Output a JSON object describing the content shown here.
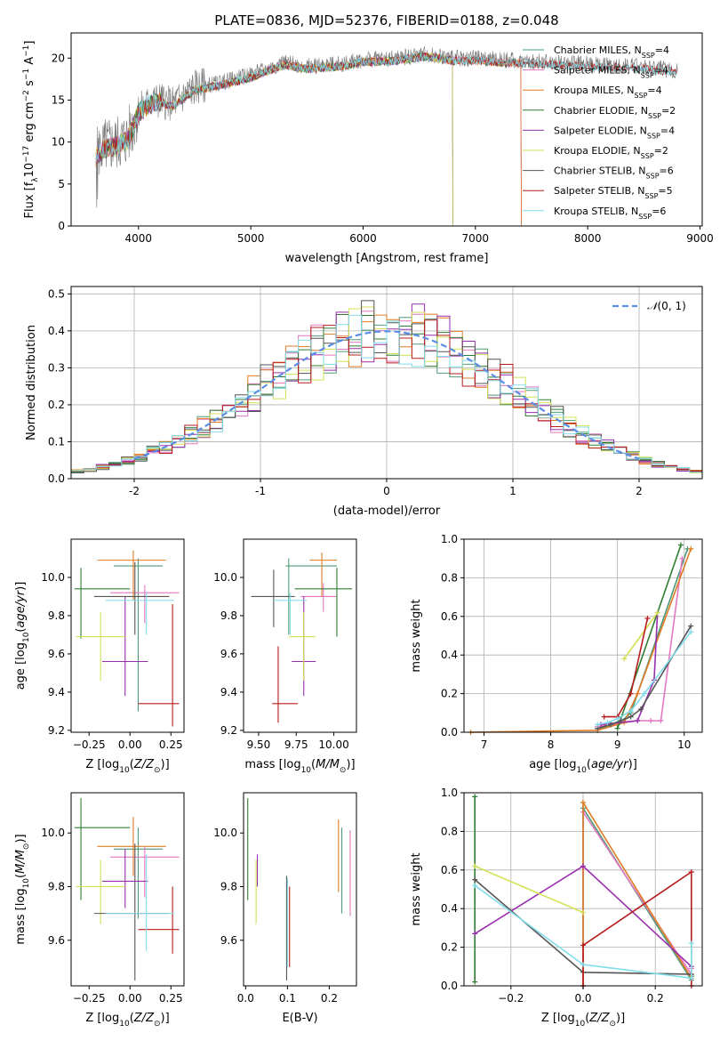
{
  "figure_title": "PLATE=0836, MJD=52376, FIBERID=0188, z=0.048",
  "colors": {
    "Chabrier MILES": "#4e9a78",
    "Salpeter MILES": "#e377c2",
    "Kroupa MILES": "#e07b24",
    "Chabrier ELODIE": "#2e7d32",
    "Salpeter ELODIE": "#9a2fae",
    "Kroupa ELODIE": "#d4e157",
    "Chabrier STELIB": "#555555",
    "Salpeter STELIB": "#b71c1c",
    "Kroupa STELIB": "#80deea",
    "normal_curve": "#5b8ee6",
    "spec_data": "#777777"
  },
  "chart_data": [
    {
      "id": "spectrum",
      "type": "line",
      "xlabel": "wavelength [Angstrom, rest frame]",
      "ylabel_parts": [
        "Flux [f",
        "λ",
        "10",
        "−17",
        " erg cm",
        "−2",
        " s",
        "−1",
        " A",
        "−1",
        "]"
      ],
      "xlim": [
        3400,
        9020
      ],
      "ylim": [
        0,
        23
      ],
      "xticks": [
        4000,
        5000,
        6000,
        7000,
        8000,
        9000
      ],
      "yticks": [
        0,
        5,
        10,
        15,
        20
      ],
      "legend": {
        "placement": "upper right",
        "entries": [
          {
            "name": "Chabrier MILES",
            "nssp": "4"
          },
          {
            "name": "Salpeter MILES",
            "nssp": "4"
          },
          {
            "name": "Kroupa MILES",
            "nssp": "4"
          },
          {
            "name": "Chabrier ELODIE",
            "nssp": "2"
          },
          {
            "name": "Salpeter ELODIE",
            "nssp": "4"
          },
          {
            "name": "Kroupa ELODIE",
            "nssp": "2"
          },
          {
            "name": "Chabrier STELIB",
            "nssp": "6"
          },
          {
            "name": "Salpeter STELIB",
            "nssp": "5"
          },
          {
            "name": "Kroupa STELIB",
            "nssp": "6"
          }
        ],
        "label_prefix": ", N",
        "label_sub": "SSP",
        "label_eq": "="
      },
      "data_profile": {
        "x": [
          3620,
          3700,
          3800,
          3900,
          3950,
          4000,
          4100,
          4200,
          4300,
          4400,
          4500,
          4700,
          5000,
          5300,
          5500,
          5800,
          6000,
          6300,
          6560,
          6800,
          7000,
          7200,
          7500,
          8000,
          8500,
          8800
        ],
        "y": [
          8.5,
          9.5,
          9.8,
          10.5,
          12.0,
          13.8,
          14.8,
          15.0,
          14.5,
          15.5,
          16.5,
          17.0,
          18.0,
          19.5,
          19.0,
          19.3,
          19.8,
          20.0,
          20.5,
          20.0,
          20.0,
          19.8,
          19.6,
          19.3,
          19.0,
          18.5
        ]
      },
      "model_cutoffs": [
        {
          "name": "Kroupa ELODIE",
          "x_end": 6800
        },
        {
          "name": "Chabrier ELODIE",
          "x_end": 6800
        },
        {
          "name": "Salpeter ELODIE",
          "x_end": 6800
        },
        {
          "name": "Kroupa MILES",
          "x_end": 7410
        },
        {
          "name": "Salpeter MILES",
          "x_end": 7410
        },
        {
          "name": "Chabrier MILES",
          "x_end": 7410
        }
      ]
    },
    {
      "id": "residuals",
      "type": "histogram",
      "xlabel": "(data-model)/error",
      "ylabel": "Normed distribution",
      "xlim": [
        -2.5,
        2.5
      ],
      "ylim": [
        0,
        0.52
      ],
      "xticks": [
        -2,
        -1,
        0,
        1,
        2
      ],
      "yticks": [
        0.0,
        0.1,
        0.2,
        0.3,
        0.4,
        0.5
      ],
      "bin_width": 0.1,
      "legend": {
        "label_prefix": "𝒩",
        "label_args": "(0, 1)",
        "placement": "upper right"
      },
      "series": [
        {
          "name": "Chabrier MILES",
          "seed": 11
        },
        {
          "name": "Salpeter MILES",
          "seed": 23
        },
        {
          "name": "Kroupa MILES",
          "seed": 37
        },
        {
          "name": "Chabrier ELODIE",
          "seed": 41
        },
        {
          "name": "Salpeter ELODIE",
          "seed": 53
        },
        {
          "name": "Kroupa ELODIE",
          "seed": 67
        },
        {
          "name": "Chabrier STELIB",
          "seed": 71
        },
        {
          "name": "Salpeter STELIB",
          "seed": 83
        },
        {
          "name": "Kroupa STELIB",
          "seed": 97
        }
      ]
    },
    {
      "id": "age_vs_Z",
      "type": "errorbar",
      "xlabel_parts": [
        "Z [log",
        "10",
        "(",
        "Z/Z",
        "⊙",
        ")]"
      ],
      "ylabel_parts": [
        "age  [log",
        "10",
        "(",
        "age/yr",
        ")]"
      ],
      "xlim": [
        -0.36,
        0.33
      ],
      "ylim": [
        9.19,
        10.2
      ],
      "xticks": [
        -0.25,
        0.0,
        0.25
      ],
      "xticklabels": [
        "−0.25",
        "0.00",
        "0.25"
      ],
      "yticks": [
        9.2,
        9.4,
        9.6,
        9.8,
        10.0
      ],
      "points": [
        {
          "name": "Chabrier MILES",
          "x": 0.05,
          "xlo": -0.1,
          "xhi": 0.2,
          "y": 10.06,
          "ylo": 9.3,
          "yhi": 10.1
        },
        {
          "name": "Salpeter MILES",
          "x": 0.09,
          "xlo": -0.12,
          "xhi": 0.3,
          "y": 9.92,
          "ylo": 9.76,
          "yhi": 9.96
        },
        {
          "name": "Kroupa MILES",
          "x": 0.02,
          "xlo": -0.2,
          "xhi": 0.22,
          "y": 10.09,
          "ylo": 9.88,
          "yhi": 10.14
        },
        {
          "name": "Chabrier ELODIE",
          "x": -0.3,
          "xlo": -0.34,
          "xhi": 0.0,
          "y": 9.94,
          "ylo": 9.68,
          "yhi": 10.05
        },
        {
          "name": "Salpeter ELODIE",
          "x": -0.03,
          "xlo": -0.17,
          "xhi": 0.11,
          "y": 9.56,
          "ylo": 9.38,
          "yhi": 9.9
        },
        {
          "name": "Kroupa ELODIE",
          "x": -0.18,
          "xlo": -0.33,
          "xhi": -0.03,
          "y": 9.69,
          "ylo": 9.46,
          "yhi": 9.82
        },
        {
          "name": "Chabrier STELIB",
          "x": 0.03,
          "xlo": -0.22,
          "xhi": 0.24,
          "y": 9.9,
          "ylo": 9.7,
          "yhi": 10.08
        },
        {
          "name": "Salpeter STELIB",
          "x": 0.26,
          "xlo": 0.05,
          "xhi": 0.3,
          "y": 9.34,
          "ylo": 9.22,
          "yhi": 9.86
        },
        {
          "name": "Kroupa STELIB",
          "x": 0.1,
          "xlo": -0.15,
          "xhi": 0.27,
          "y": 9.88,
          "ylo": 9.7,
          "yhi": 9.92
        }
      ]
    },
    {
      "id": "age_vs_mass",
      "type": "errorbar",
      "xlabel_parts": [
        "mass [log",
        "10",
        "(",
        "M/M",
        "⊙",
        ")]"
      ],
      "xlim": [
        9.4,
        10.15
      ],
      "ylim": [
        9.19,
        10.2
      ],
      "xticks": [
        9.5,
        9.75,
        10.0
      ],
      "xticklabels": [
        "9.50",
        "9.75",
        "10.00"
      ],
      "yticks": [
        9.2,
        9.4,
        9.6,
        9.8,
        10.0
      ],
      "points": [
        {
          "name": "Chabrier MILES",
          "x": 9.7,
          "xlo": 9.68,
          "xhi": 10.02,
          "y": 10.06,
          "ylo": 9.7,
          "yhi": 10.1
        },
        {
          "name": "Salpeter MILES",
          "x": 9.93,
          "xlo": 9.78,
          "xhi": 10.02,
          "y": 9.9,
          "ylo": 9.82,
          "yhi": 9.97
        },
        {
          "name": "Kroupa MILES",
          "x": 9.92,
          "xlo": 9.84,
          "xhi": 10.02,
          "y": 10.09,
          "ylo": 9.9,
          "yhi": 10.13
        },
        {
          "name": "Chabrier ELODIE",
          "x": 10.02,
          "xlo": 9.74,
          "xhi": 10.12,
          "y": 9.94,
          "ylo": 9.69,
          "yhi": 10.05
        },
        {
          "name": "Salpeter ELODIE",
          "x": 9.8,
          "xlo": 9.72,
          "xhi": 9.88,
          "y": 9.56,
          "ylo": 9.38,
          "yhi": 9.9
        },
        {
          "name": "Kroupa ELODIE",
          "x": 9.8,
          "xlo": 9.7,
          "xhi": 9.88,
          "y": 9.69,
          "ylo": 9.46,
          "yhi": 9.82
        },
        {
          "name": "Chabrier STELIB",
          "x": 9.6,
          "xlo": 9.45,
          "xhi": 9.74,
          "y": 9.9,
          "ylo": 9.74,
          "yhi": 10.04
        },
        {
          "name": "Salpeter STELIB",
          "x": 9.63,
          "xlo": 9.59,
          "xhi": 9.76,
          "y": 9.34,
          "ylo": 9.24,
          "yhi": 9.64
        },
        {
          "name": "Kroupa STELIB",
          "x": 9.71,
          "xlo": 9.6,
          "xhi": 9.82,
          "y": 9.88,
          "ylo": 9.7,
          "yhi": 9.92
        }
      ]
    },
    {
      "id": "cum_mass_vs_age",
      "type": "line",
      "xlabel_parts": [
        "age  [log",
        "10",
        "(",
        "age/yr",
        ")]"
      ],
      "ylabel": "mass weight",
      "xlim": [
        6.7,
        10.27
      ],
      "ylim": [
        0,
        1.0
      ],
      "xticks": [
        7,
        8,
        9,
        10
      ],
      "yticks": [
        0.0,
        0.2,
        0.4,
        0.6,
        0.8,
        1.0
      ],
      "series": [
        {
          "name": "Chabrier MILES",
          "x": [
            8.7,
            9.0,
            9.2,
            10.05
          ],
          "y": [
            0.02,
            0.04,
            0.1,
            0.95
          ]
        },
        {
          "name": "Salpeter MILES",
          "x": [
            8.7,
            9.3,
            9.5,
            9.65,
            9.97
          ],
          "y": [
            0.03,
            0.06,
            0.06,
            0.06,
            0.9
          ]
        },
        {
          "name": "Kroupa MILES",
          "x": [
            6.8,
            8.7,
            9.1,
            9.3,
            10.1
          ],
          "y": [
            0.0,
            0.01,
            0.05,
            0.2,
            0.95
          ]
        },
        {
          "name": "Chabrier ELODIE",
          "x": [
            9.0,
            9.95
          ],
          "y": [
            0.02,
            0.97
          ]
        },
        {
          "name": "Salpeter ELODIE",
          "x": [
            8.75,
            9.3,
            9.55,
            9.6
          ],
          "y": [
            0.04,
            0.06,
            0.27,
            0.62
          ]
        },
        {
          "name": "Kroupa ELODIE",
          "x": [
            9.1,
            9.6
          ],
          "y": [
            0.38,
            0.62
          ]
        },
        {
          "name": "Chabrier STELIB",
          "x": [
            8.7,
            8.9,
            9.05,
            9.2,
            9.35,
            10.1
          ],
          "y": [
            0.02,
            0.04,
            0.06,
            0.08,
            0.12,
            0.55
          ]
        },
        {
          "name": "Salpeter STELIB",
          "x": [
            8.8,
            9.0,
            9.2,
            9.45
          ],
          "y": [
            0.08,
            0.08,
            0.2,
            0.59
          ]
        },
        {
          "name": "Kroupa STELIB",
          "x": [
            8.7,
            8.85,
            9.0,
            9.2,
            9.4,
            10.1
          ],
          "y": [
            0.04,
            0.05,
            0.07,
            0.11,
            0.2,
            0.52
          ]
        }
      ]
    },
    {
      "id": "mass_vs_Z",
      "type": "errorbar",
      "xlabel_parts": [
        "Z [log",
        "10",
        "(",
        "Z/Z",
        "⊙",
        ")]"
      ],
      "ylabel_parts": [
        "mass [log",
        "10",
        "(",
        "M/M",
        "⊙",
        ")]"
      ],
      "xlim": [
        -0.36,
        0.33
      ],
      "ylim": [
        9.43,
        10.15
      ],
      "xticks": [
        -0.25,
        0.0,
        0.25
      ],
      "xticklabels": [
        "−0.25",
        "0.00",
        "0.25"
      ],
      "yticks": [
        9.6,
        9.8,
        10.0
      ],
      "points": [
        {
          "name": "Chabrier MILES",
          "x": 0.05,
          "xlo": -0.1,
          "xhi": 0.2,
          "y": 9.94,
          "ylo": 9.68,
          "yhi": 10.02
        },
        {
          "name": "Salpeter MILES",
          "x": 0.09,
          "xlo": -0.12,
          "xhi": 0.3,
          "y": 9.91,
          "ylo": 9.76,
          "yhi": 9.95
        },
        {
          "name": "Kroupa MILES",
          "x": 0.02,
          "xlo": -0.2,
          "xhi": 0.22,
          "y": 9.95,
          "ylo": 9.84,
          "yhi": 10.06
        },
        {
          "name": "Chabrier ELODIE",
          "x": -0.3,
          "xlo": -0.34,
          "xhi": 0.0,
          "y": 10.02,
          "ylo": 9.75,
          "yhi": 10.13
        },
        {
          "name": "Salpeter ELODIE",
          "x": -0.03,
          "xlo": -0.17,
          "xhi": 0.11,
          "y": 9.82,
          "ylo": 9.72,
          "yhi": 9.94
        },
        {
          "name": "Kroupa ELODIE",
          "x": -0.18,
          "xlo": -0.33,
          "xhi": -0.03,
          "y": 9.8,
          "ylo": 9.66,
          "yhi": 9.9
        },
        {
          "name": "Chabrier STELIB",
          "x": 0.03,
          "xlo": -0.22,
          "xhi": 0.24,
          "y": 9.7,
          "ylo": 9.45,
          "yhi": 9.96
        },
        {
          "name": "Salpeter STELIB",
          "x": 0.26,
          "xlo": 0.05,
          "xhi": 0.3,
          "y": 9.64,
          "ylo": 9.55,
          "yhi": 9.8
        },
        {
          "name": "Kroupa STELIB",
          "x": 0.1,
          "xlo": -0.15,
          "xhi": 0.27,
          "y": 9.7,
          "ylo": 9.56,
          "yhi": 9.92
        }
      ]
    },
    {
      "id": "mass_vs_ebv",
      "type": "errorbar",
      "xlabel": "E(B-V)",
      "xlim": [
        -0.005,
        0.265
      ],
      "ylim": [
        9.43,
        10.15
      ],
      "xticks": [
        0.0,
        0.1,
        0.2
      ],
      "xticklabels": [
        "0.0",
        "0.1",
        "0.2"
      ],
      "yticks": [
        9.6,
        9.8,
        10.0
      ],
      "points": [
        {
          "name": "Chabrier MILES",
          "x": 0.23,
          "ylo": 9.7,
          "yhi": 10.02
        },
        {
          "name": "Salpeter MILES",
          "x": 0.25,
          "ylo": 9.69,
          "yhi": 10.01
        },
        {
          "name": "Kroupa MILES",
          "x": 0.222,
          "ylo": 9.78,
          "yhi": 10.05
        },
        {
          "name": "Chabrier ELODIE",
          "x": 0.005,
          "ylo": 9.75,
          "yhi": 10.13
        },
        {
          "name": "Salpeter ELODIE",
          "x": 0.028,
          "ylo": 9.8,
          "yhi": 9.92
        },
        {
          "name": "Kroupa ELODIE",
          "x": 0.025,
          "ylo": 9.66,
          "yhi": 9.9
        },
        {
          "name": "Chabrier STELIB",
          "x": 0.098,
          "ylo": 9.45,
          "yhi": 9.84
        },
        {
          "name": "Salpeter STELIB",
          "x": 0.105,
          "ylo": 9.5,
          "yhi": 9.8
        },
        {
          "name": "Kroupa STELIB",
          "x": 0.1,
          "ylo": 9.5,
          "yhi": 9.83
        }
      ]
    },
    {
      "id": "cum_mass_vs_Z",
      "type": "line",
      "xlabel_parts": [
        "Z [log",
        "10",
        "(",
        "Z/Z",
        "⊙",
        ")]"
      ],
      "ylabel": "mass weight",
      "xlim": [
        -0.33,
        0.33
      ],
      "ylim": [
        0,
        1.0
      ],
      "xticks": [
        -0.2,
        0.0,
        0.2
      ],
      "xticklabels": [
        "−0.2",
        "0.0",
        "0.2"
      ],
      "yticks": [
        0.0,
        0.2,
        0.4,
        0.6,
        0.8,
        1.0
      ],
      "series": [
        {
          "name": "Chabrier MILES",
          "x": [
            0.0,
            0.0,
            0.3,
            0.3
          ],
          "y": [
            0.0,
            0.92,
            0.03,
            0.05
          ]
        },
        {
          "name": "Salpeter MILES",
          "x": [
            0.0,
            0.0,
            0.3,
            0.3
          ],
          "y": [
            0.0,
            0.9,
            0.06,
            0.09
          ]
        },
        {
          "name": "Kroupa MILES",
          "x": [
            0.0,
            0.0,
            0.3,
            0.3
          ],
          "y": [
            0.0,
            0.95,
            0.04,
            0.06
          ]
        },
        {
          "name": "Chabrier ELODIE",
          "x": [
            -0.3,
            -0.3
          ],
          "y": [
            0.02,
            0.98
          ]
        },
        {
          "name": "Salpeter ELODIE",
          "x": [
            -0.3,
            0.0,
            0.3
          ],
          "y": [
            0.27,
            0.62,
            0.1
          ]
        },
        {
          "name": "Kroupa ELODIE",
          "x": [
            -0.3,
            0.0
          ],
          "y": [
            0.62,
            0.38
          ]
        },
        {
          "name": "Chabrier STELIB",
          "x": [
            -0.3,
            0.0,
            0.3
          ],
          "y": [
            0.55,
            0.07,
            0.06
          ]
        },
        {
          "name": "Salpeter STELIB",
          "x": [
            0.0,
            0.0,
            0.3,
            0.3
          ],
          "y": [
            0.0,
            0.21,
            0.59,
            0.0
          ]
        },
        {
          "name": "Kroupa STELIB",
          "x": [
            -0.3,
            0.0,
            0.3,
            0.3
          ],
          "y": [
            0.52,
            0.11,
            0.04,
            0.22
          ]
        }
      ]
    }
  ]
}
